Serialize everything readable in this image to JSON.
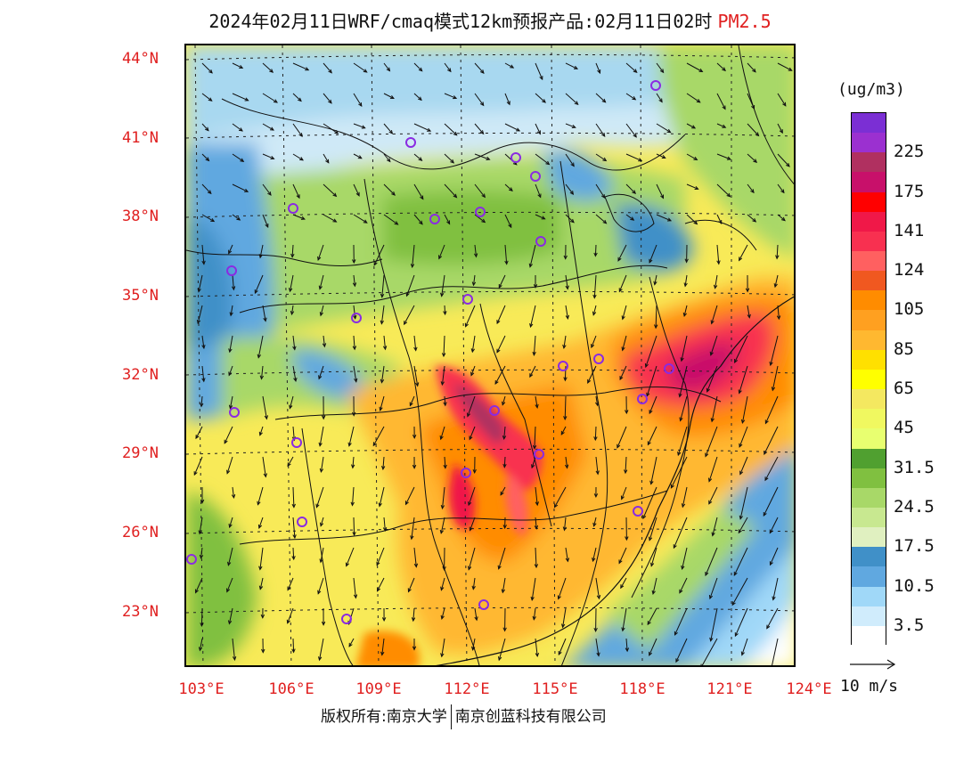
{
  "title": {
    "main": "2024年02月11日WRF/cmaq模式12km预报产品:02月11日02时",
    "variable": "PM2.5"
  },
  "map": {
    "lat_labels": [
      "44°N",
      "41°N",
      "38°N",
      "35°N",
      "32°N",
      "29°N",
      "26°N",
      "23°N"
    ],
    "lon_labels": [
      "103°E",
      "106°E",
      "109°E",
      "112°E",
      "115°E",
      "118°E",
      "121°E",
      "124°E"
    ],
    "station_marker_color": "#8a2be2",
    "grid_color": "#222222"
  },
  "colorbar": {
    "unit": "(ug/m3)",
    "levels": [
      {
        "color": "#7b2fd4"
      },
      {
        "color": "#9b30d0",
        "label": "225"
      },
      {
        "color": "#b03060"
      },
      {
        "color": "#c8106a",
        "label": "175"
      },
      {
        "color": "#ff0000"
      },
      {
        "color": "#f01848",
        "label": "141"
      },
      {
        "color": "#f83050"
      },
      {
        "color": "#ff6060",
        "label": "124"
      },
      {
        "color": "#f05820"
      },
      {
        "color": "#ff8c00",
        "label": "105"
      },
      {
        "color": "#ffa020"
      },
      {
        "color": "#ffb830",
        "label": "85"
      },
      {
        "color": "#ffe000"
      },
      {
        "color": "#ffff00",
        "label": "65"
      },
      {
        "color": "#f4e860"
      },
      {
        "color": "#f0f860",
        "label": "45"
      },
      {
        "color": "#e8ff70"
      },
      {
        "color": "#50a030",
        "label": "31.5"
      },
      {
        "color": "#80c040"
      },
      {
        "color": "#a8d868",
        "label": "24.5"
      },
      {
        "color": "#c8e890"
      },
      {
        "color": "#e0f0c0",
        "label": "17.5"
      },
      {
        "color": "#4090c8"
      },
      {
        "color": "#60a8e0",
        "label": "10.5"
      },
      {
        "color": "#a0d8f8"
      },
      {
        "color": "#d0ecfc",
        "label": "3.5"
      },
      {
        "color": "#ffffff"
      }
    ]
  },
  "wind_reference": {
    "label": "10 m/s"
  },
  "copyright": {
    "left": "版权所有:南京大学",
    "right": "南京创蓝科技有限公司"
  }
}
